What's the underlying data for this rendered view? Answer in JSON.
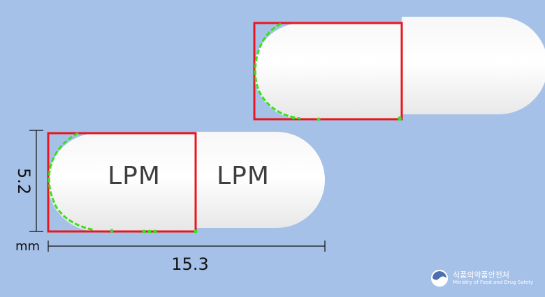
{
  "capsule_imprints": {
    "front_left": "LPM",
    "front_right": "LPM"
  },
  "dimensions": {
    "height": "5.2",
    "length": "15.3",
    "unit": "mm"
  },
  "logo": {
    "name_korean": "식품의약품안전처",
    "name_english": "Ministry of Food and Drug Safety"
  },
  "colors": {
    "background": "#a6c1e8",
    "capsule": "#ffffff",
    "box": "#e8161e",
    "contour": "#39e01c"
  }
}
